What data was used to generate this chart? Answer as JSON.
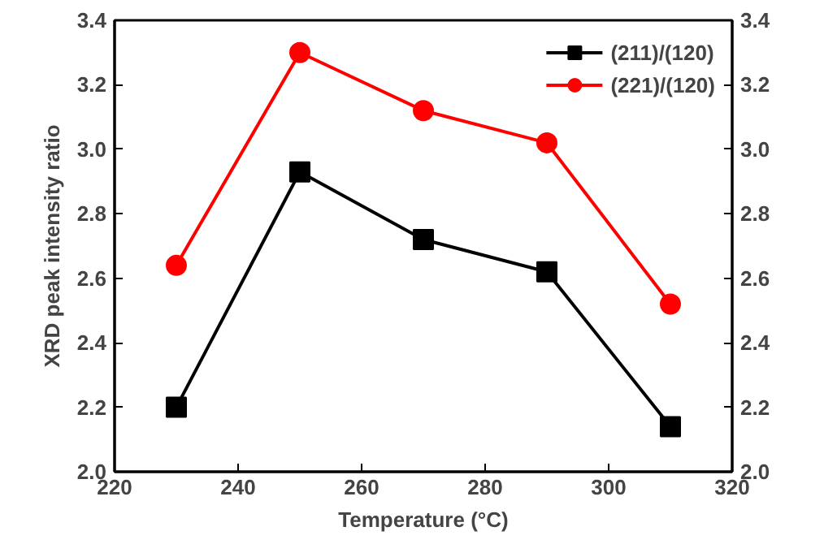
{
  "chart_data": {
    "type": "line",
    "xlabel": "Temperature (°C)",
    "ylabel": "XRD peak intensity ratio",
    "x": [
      230,
      250,
      270,
      290,
      310
    ],
    "series": [
      {
        "name": "(211)/(120)",
        "color": "#000000",
        "marker": "square",
        "values": [
          2.2,
          2.93,
          2.72,
          2.62,
          2.14
        ]
      },
      {
        "name": "(221)/(120)",
        "color": "#ff0000",
        "marker": "circle",
        "values": [
          2.64,
          3.3,
          3.12,
          3.02,
          2.52
        ]
      }
    ],
    "xlim": [
      220,
      320
    ],
    "xticks": [
      220,
      240,
      260,
      280,
      300,
      320
    ],
    "ylim": [
      2.0,
      3.4
    ],
    "yticks": [
      {
        "value": 2.0,
        "label": "2.0"
      },
      {
        "value": 2.2,
        "label": "2.2"
      },
      {
        "value": 2.4,
        "label": "2.4"
      },
      {
        "value": 2.6,
        "label": "2.6"
      },
      {
        "value": 2.8,
        "label": "2.8"
      },
      {
        "value": 3.0,
        "label": "3.0"
      },
      {
        "value": 3.2,
        "label": "3.2"
      },
      {
        "value": 3.4,
        "label": "3.4"
      }
    ],
    "y2lim": [
      2.0,
      3.4
    ],
    "y2ticks": [
      {
        "value": 2.0,
        "label": "2.0"
      },
      {
        "value": 2.2,
        "label": "2.2"
      },
      {
        "value": 2.4,
        "label": "2.4"
      },
      {
        "value": 2.6,
        "label": "2.6"
      },
      {
        "value": 2.8,
        "label": "2.8"
      },
      {
        "value": 3.0,
        "label": "3.0"
      },
      {
        "value": 3.2,
        "label": "3.2"
      },
      {
        "value": 3.4,
        "label": "3.4"
      }
    ],
    "grid": false,
    "legend": "top right",
    "line_style": "solid"
  }
}
